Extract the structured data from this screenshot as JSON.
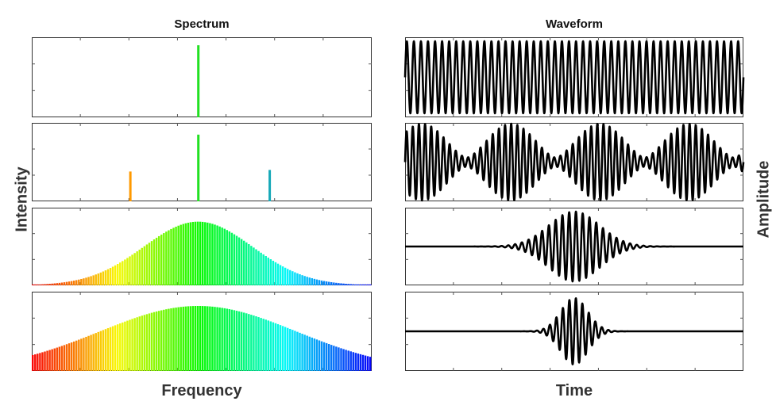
{
  "figure": {
    "spectrum_title": "Spectrum",
    "waveform_title": "Waveform",
    "spectrum_xlabel": "Frequency",
    "waveform_xlabel": "Time",
    "spectrum_ylabel": "Intensity",
    "waveform_ylabel": "Amplitude"
  },
  "chart_data": [
    {
      "type": "bar",
      "panel": "spectrum",
      "row": 1,
      "lines": [
        {
          "x": 0.49,
          "height": 0.9,
          "color": "#22e022"
        }
      ]
    },
    {
      "type": "bar",
      "panel": "spectrum",
      "row": 2,
      "lines": [
        {
          "x": 0.29,
          "height": 0.38,
          "color": "#ff9900"
        },
        {
          "x": 0.49,
          "height": 0.85,
          "color": "#22e022"
        },
        {
          "x": 0.7,
          "height": 0.4,
          "color": "#15a8b8"
        }
      ]
    },
    {
      "type": "bar",
      "panel": "spectrum",
      "row": 3,
      "envelope": {
        "shape": "gaussian",
        "center": 0.49,
        "width": 0.16,
        "peak": 0.82,
        "color_range": [
          "#ff0000",
          "#0000ff"
        ]
      }
    },
    {
      "type": "bar",
      "panel": "spectrum",
      "row": 4,
      "envelope": {
        "shape": "gaussian",
        "center": 0.49,
        "width": 0.29,
        "peak": 0.82,
        "color_range": [
          "#ff0000",
          "#0000ff"
        ]
      }
    },
    {
      "type": "line",
      "panel": "waveform",
      "row": 1,
      "signal": {
        "kind": "continuous",
        "cycles": 48,
        "amplitude": 0.45,
        "center": 0.5
      }
    },
    {
      "type": "line",
      "panel": "waveform",
      "row": 2,
      "signal": {
        "kind": "beats",
        "cycles": 55,
        "beat_cycles": 3.8,
        "amplitude": 0.48,
        "center": 0.5
      }
    },
    {
      "type": "line",
      "panel": "waveform",
      "row": 3,
      "signal": {
        "kind": "pulse",
        "cycles": 50,
        "pulse_center": 0.5,
        "pulse_width": 0.075,
        "amplitude": 0.45,
        "center": 0.5
      }
    },
    {
      "type": "line",
      "panel": "waveform",
      "row": 4,
      "signal": {
        "kind": "pulse",
        "cycles": 52,
        "pulse_center": 0.5,
        "pulse_width": 0.04,
        "amplitude": 0.42,
        "center": 0.5
      }
    }
  ]
}
